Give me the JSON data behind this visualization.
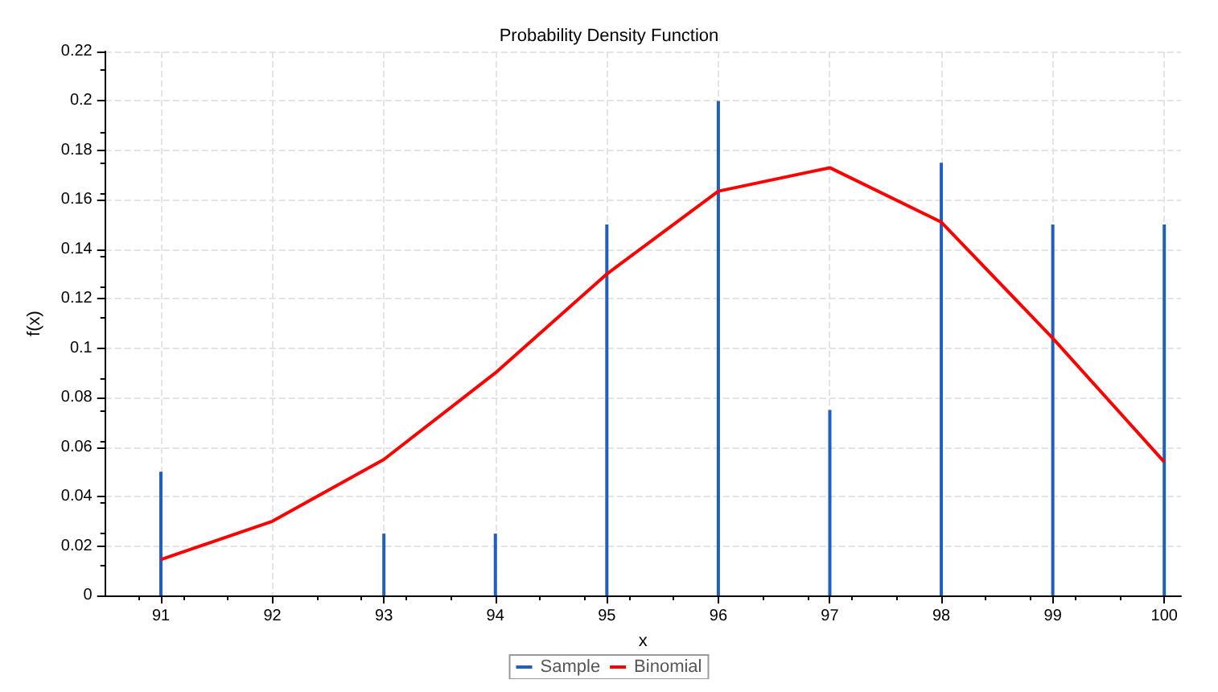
{
  "chart_data": {
    "type": "bar",
    "title": "Probability Density Function",
    "xlabel": "x",
    "ylabel": "f(x)",
    "x": [
      91,
      92,
      93,
      94,
      95,
      96,
      97,
      98,
      99,
      100
    ],
    "series": [
      {
        "name": "Sample",
        "color": "#1f5fbf",
        "values": [
          0.05,
          0,
          0.025,
          0.025,
          0.15,
          0.2,
          0.075,
          0.175,
          0.15,
          0.15
        ]
      },
      {
        "name": "Binomial",
        "type": "line",
        "color": "#ff0000",
        "values": [
          0.0145,
          0.03,
          0.055,
          0.09,
          0.13,
          0.1635,
          0.173,
          0.151,
          0.104,
          0.054
        ]
      }
    ],
    "xlim": [
      90.5,
      100.15
    ],
    "xticks": [
      91,
      92,
      93,
      94,
      95,
      96,
      97,
      98,
      99,
      100
    ],
    "ylim": [
      0,
      0.22
    ],
    "yticks": [
      0,
      0.02,
      0.04,
      0.06,
      0.08,
      0.1,
      0.12,
      0.14,
      0.16,
      0.18,
      0.2,
      0.22
    ],
    "grid": true,
    "legend": "bottom",
    "marker": "none",
    "line_style": "solid"
  }
}
